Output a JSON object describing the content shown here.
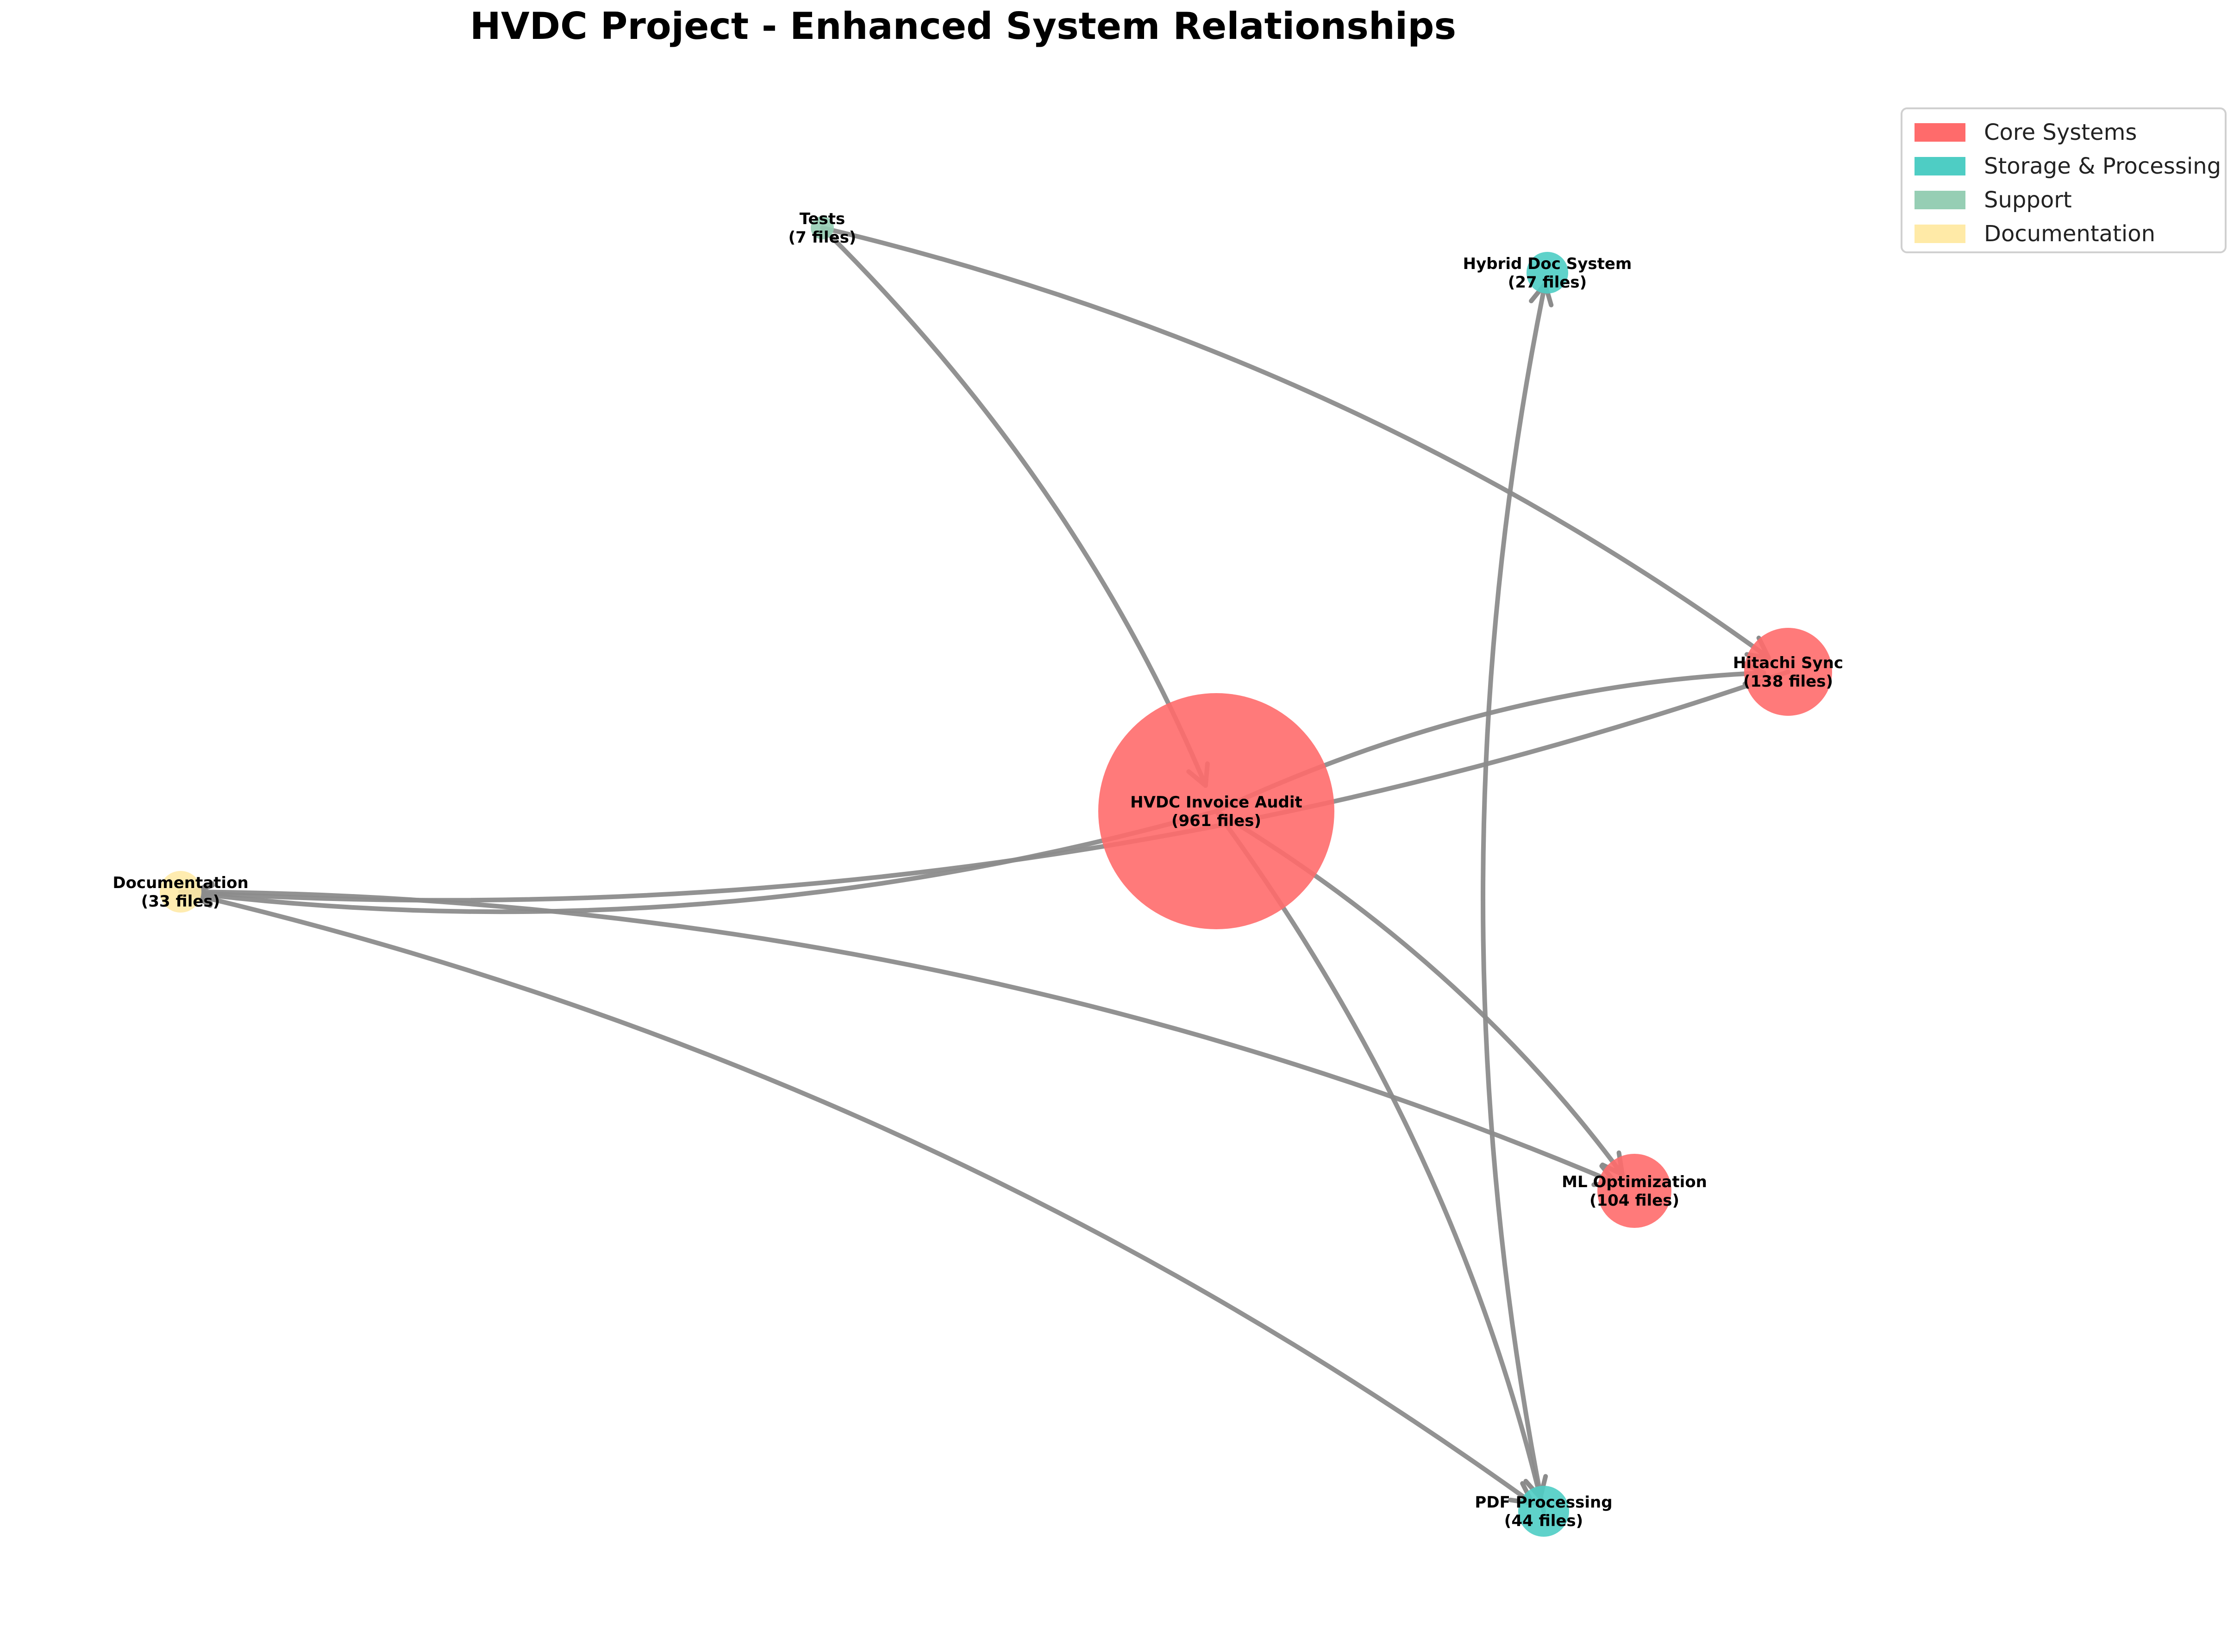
{
  "title": "HVDC Project - Enhanced System Relationships",
  "legend": {
    "items": [
      {
        "label": "Core Systems",
        "color": "#ff6b6b"
      },
      {
        "label": "Storage & Processing",
        "color": "#4ecdc4"
      },
      {
        "label": "Support",
        "color": "#96ceb4"
      },
      {
        "label": "Documentation",
        "color": "#ffeaa7"
      }
    ]
  },
  "nodes": [
    {
      "id": "hvdc",
      "name": "HVDC Invoice Audit",
      "files": 961,
      "files_label": "(961 files)",
      "category": "Core Systems"
    },
    {
      "id": "hitachi",
      "name": "Hitachi Sync",
      "files": 138,
      "files_label": "(138 files)",
      "category": "Core Systems"
    },
    {
      "id": "ml",
      "name": "ML Optimization",
      "files": 104,
      "files_label": "(104 files)",
      "category": "Core Systems"
    },
    {
      "id": "pdf",
      "name": "PDF Processing",
      "files": 44,
      "files_label": "(44 files)",
      "category": "Storage & Processing"
    },
    {
      "id": "hybrid",
      "name": "Hybrid Doc System",
      "files": 27,
      "files_label": "(27 files)",
      "category": "Storage & Processing"
    },
    {
      "id": "docs",
      "name": "Documentation",
      "files": 33,
      "files_label": "(33 files)",
      "category": "Documentation"
    },
    {
      "id": "tests",
      "name": "Tests",
      "files": 7,
      "files_label": "(7 files)",
      "category": "Support"
    }
  ],
  "edges": [
    {
      "from": "tests",
      "to": "hvdc"
    },
    {
      "from": "tests",
      "to": "hitachi"
    },
    {
      "from": "hitachi",
      "to": "docs"
    },
    {
      "from": "hvdc",
      "to": "hitachi"
    },
    {
      "from": "hvdc",
      "to": "docs"
    },
    {
      "from": "hvdc",
      "to": "ml"
    },
    {
      "from": "hvdc",
      "to": "pdf"
    },
    {
      "from": "docs",
      "to": "ml"
    },
    {
      "from": "docs",
      "to": "pdf"
    },
    {
      "from": "pdf",
      "to": "hybrid"
    }
  ]
}
